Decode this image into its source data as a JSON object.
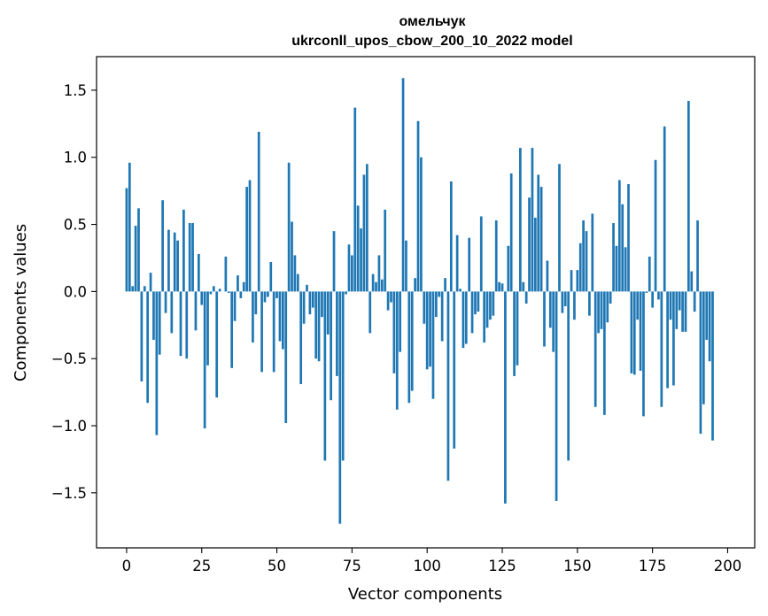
{
  "chart_data": {
    "type": "bar",
    "title_line1": "омельчук",
    "title_line2": "ukrconll_upos_cbow_200_10_2022 model",
    "xlabel": "Vector components",
    "ylabel": "Components values",
    "xlim": [
      -10,
      209
    ],
    "ylim": [
      -1.91,
      1.75
    ],
    "xticks": [
      0,
      25,
      50,
      75,
      100,
      125,
      150,
      175,
      200
    ],
    "xtick_labels": [
      "0",
      "25",
      "50",
      "75",
      "100",
      "125",
      "150",
      "175",
      "200"
    ],
    "yticks": [
      -1.5,
      -1.0,
      -0.5,
      0.0,
      0.5,
      1.0,
      1.5
    ],
    "ytick_labels": [
      "−1.5",
      "−1.0",
      "−0.5",
      "0.0",
      "0.5",
      "1.0",
      "1.5"
    ],
    "bar_color": "#1f77b4",
    "values": [
      0.77,
      0.96,
      0.04,
      0.49,
      0.62,
      -0.67,
      0.04,
      -0.83,
      0.14,
      -0.36,
      -1.07,
      -0.47,
      0.68,
      -0.16,
      0.46,
      -0.31,
      0.44,
      0.38,
      -0.48,
      0.61,
      -0.5,
      0.51,
      0.51,
      -0.29,
      0.28,
      -0.1,
      -1.02,
      -0.55,
      -0.02,
      0.04,
      -0.79,
      0.02,
      0.0,
      0.26,
      -0.01,
      -0.57,
      -0.22,
      0.12,
      -0.05,
      0.07,
      0.78,
      0.83,
      -0.38,
      -0.17,
      1.19,
      -0.6,
      -0.08,
      -0.04,
      0.22,
      -0.6,
      -0.05,
      -0.37,
      -0.43,
      -0.98,
      0.96,
      0.52,
      0.27,
      0.13,
      -0.69,
      -0.24,
      0.05,
      -0.17,
      -0.12,
      -0.5,
      -0.52,
      -0.19,
      -1.26,
      -0.32,
      -0.81,
      0.45,
      -0.63,
      -1.73,
      -1.26,
      -0.02,
      0.35,
      0.27,
      1.37,
      0.64,
      0.47,
      0.87,
      0.95,
      -0.31,
      0.13,
      0.07,
      0.27,
      0.09,
      0.61,
      -0.14,
      -0.08,
      -0.61,
      -0.88,
      -0.45,
      1.59,
      0.38,
      -0.83,
      -0.74,
      0.1,
      1.27,
      1.0,
      -0.24,
      -0.58,
      -0.56,
      -0.8,
      -0.19,
      -0.04,
      -0.37,
      0.1,
      -1.41,
      0.82,
      -1.17,
      0.42,
      0.02,
      -0.42,
      -0.39,
      0.4,
      -0.31,
      -0.17,
      -0.15,
      0.56,
      -0.38,
      -0.27,
      -0.21,
      -0.18,
      0.53,
      0.07,
      0.06,
      -1.58,
      0.34,
      0.88,
      -0.63,
      -0.55,
      1.07,
      0.07,
      -0.09,
      0.7,
      1.07,
      0.55,
      0.87,
      0.78,
      -0.41,
      0.23,
      -0.27,
      -0.45,
      -1.56,
      0.95,
      -0.16,
      -0.11,
      -1.26,
      0.16,
      -0.21,
      0.16,
      0.36,
      0.53,
      0.45,
      -0.18,
      0.58,
      -0.86,
      -0.31,
      -0.28,
      -0.92,
      -0.23,
      -0.09,
      0.51,
      0.34,
      0.83,
      0.65,
      0.33,
      0.8,
      -0.61,
      -0.62,
      -0.21,
      -0.59,
      -0.93,
      -0.01,
      0.26,
      -0.12,
      0.98,
      -0.06,
      -0.86,
      1.23,
      -0.72,
      -0.21,
      -0.7,
      -0.28,
      -0.14,
      -0.3,
      -0.3,
      1.42,
      0.15,
      -0.15,
      0.53,
      -1.06,
      -0.84,
      -0.36,
      -0.52,
      -1.11
    ]
  }
}
